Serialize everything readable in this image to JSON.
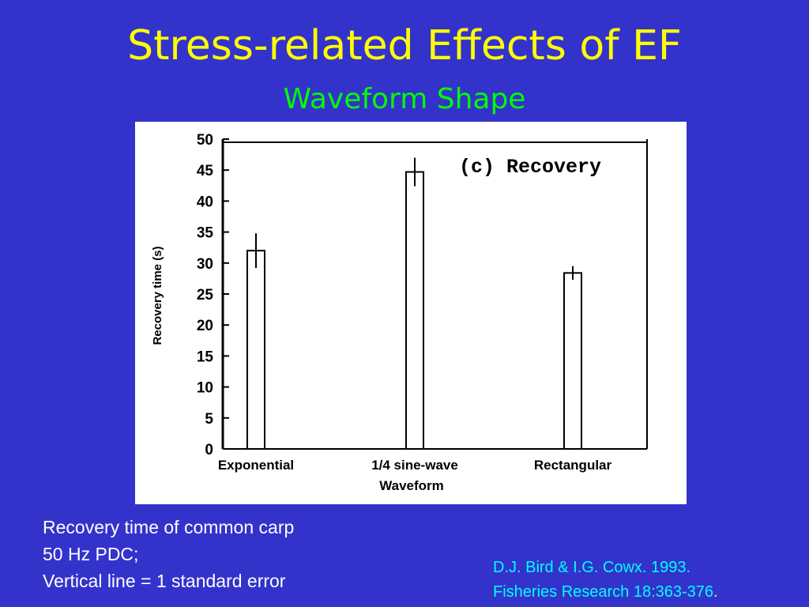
{
  "slide": {
    "title": "Stress-related Effects of EF",
    "subtitle": "Waveform Shape",
    "caption": [
      "Recovery time of common carp",
      "50 Hz PDC;",
      "Vertical line = 1 standard error"
    ],
    "citation": [
      "D.J. Bird & I.G. Cowx. 1993.",
      "Fisheries Research 18:363-376"
    ],
    "citation_period": ".",
    "colors": {
      "background": "#3333cc",
      "title": "#ffff00",
      "subtitle": "#00ff00",
      "caption": "#ffffff",
      "citation": "#00ffff"
    }
  },
  "chart_data": {
    "type": "bar",
    "panel_label": "(c) Recovery",
    "xlabel": "Waveform",
    "ylabel": "Recovery time (s)",
    "categories": [
      "Exponential",
      "1/4 sine-wave",
      "Rectangular"
    ],
    "values": [
      32,
      44.7,
      28.4
    ],
    "errors": [
      2.8,
      2.3,
      1.1
    ],
    "ylim": [
      0,
      50
    ],
    "yticks": [
      0,
      5,
      10,
      15,
      20,
      25,
      30,
      35,
      40,
      45,
      50
    ],
    "grid": false,
    "legend": "none"
  }
}
